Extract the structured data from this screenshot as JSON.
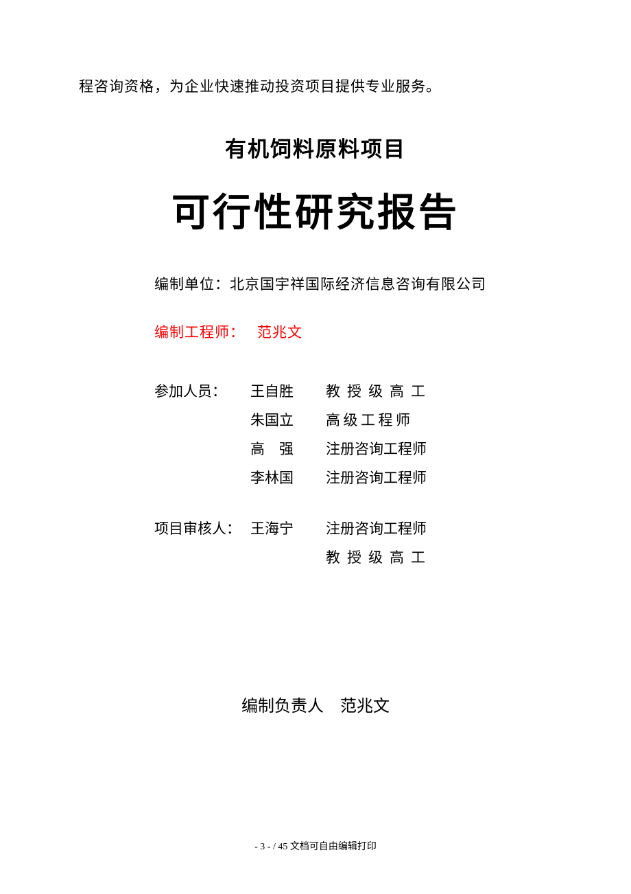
{
  "top_text": "程咨询资格，为企业快速推动投资项目提供专业服务。",
  "subtitle": "有机饲料原料项目",
  "main_title": "可行性研究报告",
  "org_label": "编制单位：",
  "org_name": "北京国宇祥国际经济信息咨询有限公司",
  "engineer_label": "编制工程师：",
  "engineer_name": "范兆文",
  "participant_label": "参加人员：",
  "reviewer_label": "项目审核人：",
  "participants": [
    {
      "name": "王自胜",
      "title": "教授级高工",
      "title_spacing": "spaced4"
    },
    {
      "name": "朱国立",
      "title": "高级工程师",
      "title_spacing": "spaced5"
    },
    {
      "name": "高　强",
      "name_class": "",
      "title": "注册咨询工程师",
      "title_spacing": ""
    },
    {
      "name": "李林国",
      "title": "注册咨询工程师",
      "title_spacing": ""
    }
  ],
  "reviewers": [
    {
      "name": "王海宁",
      "title": "注册咨询工程师",
      "title_spacing": ""
    },
    {
      "name": "",
      "title": "教授级高工",
      "title_spacing": "spaced4"
    }
  ],
  "responsible_label": "编制负责人",
  "responsible_name": "范兆文",
  "footer_text": "- 3 - / 45 文档可自由编辑打印"
}
